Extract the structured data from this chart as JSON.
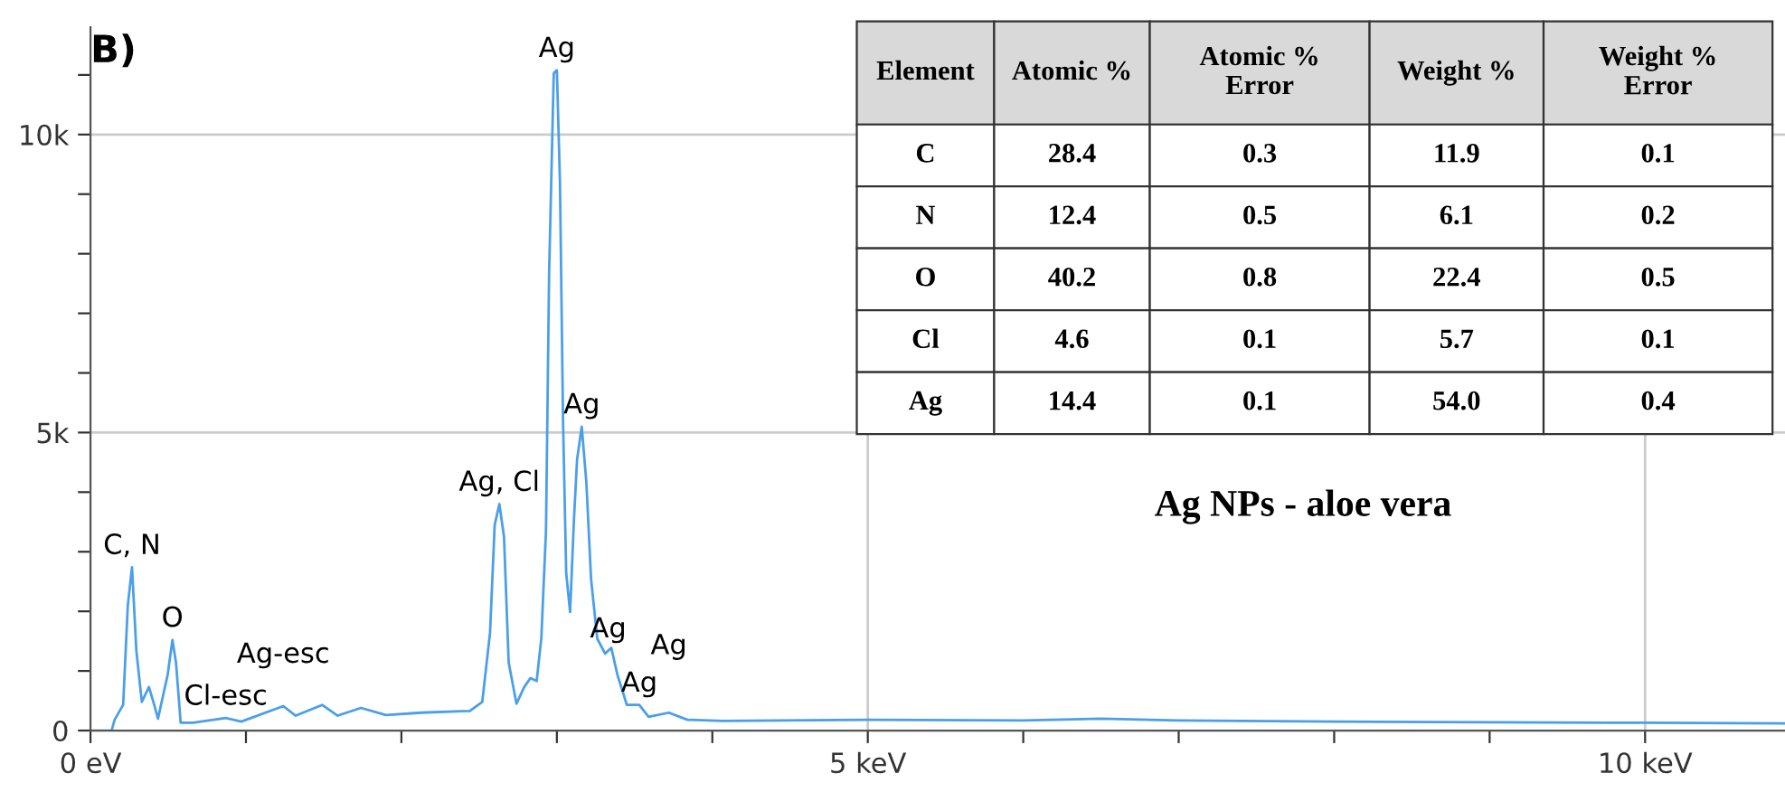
{
  "chart_data": [
    {
      "type": "line",
      "title": "B)",
      "x": [
        0,
        0.136,
        0.155,
        0.21,
        0.24,
        0.267,
        0.295,
        0.33,
        0.376,
        0.41,
        0.434,
        0.496,
        0.527,
        0.55,
        0.58,
        0.66,
        0.87,
        0.97,
        1.24,
        1.32,
        1.49,
        1.59,
        1.74,
        1.9,
        2.13,
        2.44,
        2.52,
        2.57,
        2.6,
        2.63,
        2.66,
        2.69,
        2.74,
        2.79,
        2.83,
        2.87,
        2.9,
        2.93,
        2.95,
        2.98,
        3.0,
        3.02,
        3.04,
        3.06,
        3.085,
        3.11,
        3.13,
        3.16,
        3.19,
        3.22,
        3.26,
        3.31,
        3.35,
        3.39,
        3.45,
        3.53,
        3.59,
        3.72,
        3.84,
        4.07,
        5.0,
        6.0,
        6.5,
        7.0,
        8.0,
        9.0,
        10.0,
        10.9
      ],
      "series": [
        {
          "color": "#4a9fe8",
          "values": [
            0,
            0,
            180,
            430,
            2100,
            2740,
            1340,
            480,
            730,
            430,
            200,
            930,
            1520,
            1140,
            130,
            130,
            210,
            150,
            410,
            250,
            430,
            250,
            380,
            260,
            300,
            330,
            480,
            1640,
            3450,
            3800,
            3250,
            1140,
            450,
            730,
            880,
            830,
            1550,
            3350,
            7670,
            11030,
            11080,
            9180,
            5150,
            2640,
            1990,
            3550,
            4550,
            5100,
            4150,
            2540,
            1540,
            1290,
            1390,
            930,
            430,
            430,
            230,
            300,
            180,
            160,
            180,
            170,
            200,
            170,
            150,
            140,
            130,
            120
          ]
        }
      ],
      "xlim": [
        0,
        10.9
      ],
      "ylim": [
        0,
        11800
      ],
      "xticks": [
        {
          "value": 0,
          "label": "0 eV"
        },
        {
          "value": 1,
          "label": null
        },
        {
          "value": 2,
          "label": null
        },
        {
          "value": 3,
          "label": null
        },
        {
          "value": 4,
          "label": null
        },
        {
          "value": 5,
          "label": "5 keV"
        },
        {
          "value": 6,
          "label": null
        },
        {
          "value": 7,
          "label": null
        },
        {
          "value": 8,
          "label": null
        },
        {
          "value": 9,
          "label": null
        },
        {
          "value": 10,
          "label": "10 keV"
        }
      ],
      "yticks": [
        0,
        {
          "value": 1000,
          "label": null
        },
        {
          "value": 2000,
          "label": null
        },
        {
          "value": 3000,
          "label": null
        },
        {
          "value": 4000,
          "label": null
        },
        {
          "value": 5000,
          "label": "5k"
        },
        {
          "value": 6000,
          "label": null
        },
        {
          "value": 7000,
          "label": null
        },
        {
          "value": 8000,
          "label": null
        },
        {
          "value": 9000,
          "label": null
        },
        {
          "value": 10000,
          "label": "10k"
        },
        {
          "value": 11000,
          "label": null
        }
      ],
      "grid": true,
      "annotations": [
        {
          "text": "C, N",
          "x": 0.267,
          "y": 2740
        },
        {
          "text": "O",
          "x": 0.527,
          "y": 1520
        },
        {
          "text": "Cl-esc",
          "x": 0.87,
          "y": 210
        },
        {
          "text": "Ag-esc",
          "x": 1.24,
          "y": 410
        },
        {
          "text": "Ag, Cl",
          "x": 2.63,
          "y": 3800
        },
        {
          "text": "Ag",
          "x": 3.0,
          "y": 11080
        },
        {
          "text": "Ag",
          "x": 3.16,
          "y": 5100
        },
        {
          "text": "Ag",
          "x": 3.33,
          "y": 1340
        },
        {
          "text": "Ag",
          "x": 3.53,
          "y": 430
        },
        {
          "text": "Ag",
          "x": 3.72,
          "y": 300
        },
        "Ag NPs - aloe vera"
      ]
    },
    {
      "type": "other",
      "categories": [
        "Element",
        "Atomic %",
        "Atomic %\nError",
        "Weight %",
        "Weight %\nError"
      ],
      "y_categories": [
        "C",
        "N",
        "O",
        "Cl",
        "Ag"
      ],
      "cell_labels": [
        [
          "28.4",
          "0.3",
          "11.9",
          "0.1"
        ],
        [
          "12.4",
          "0.5",
          "6.1",
          "0.2"
        ],
        [
          "40.2",
          "0.8",
          "22.4",
          "0.5"
        ],
        [
          "4.6",
          "0.1",
          "5.7",
          "0.1"
        ],
        [
          "14.4",
          "0.1",
          "54.0",
          "0.4"
        ]
      ]
    }
  ]
}
